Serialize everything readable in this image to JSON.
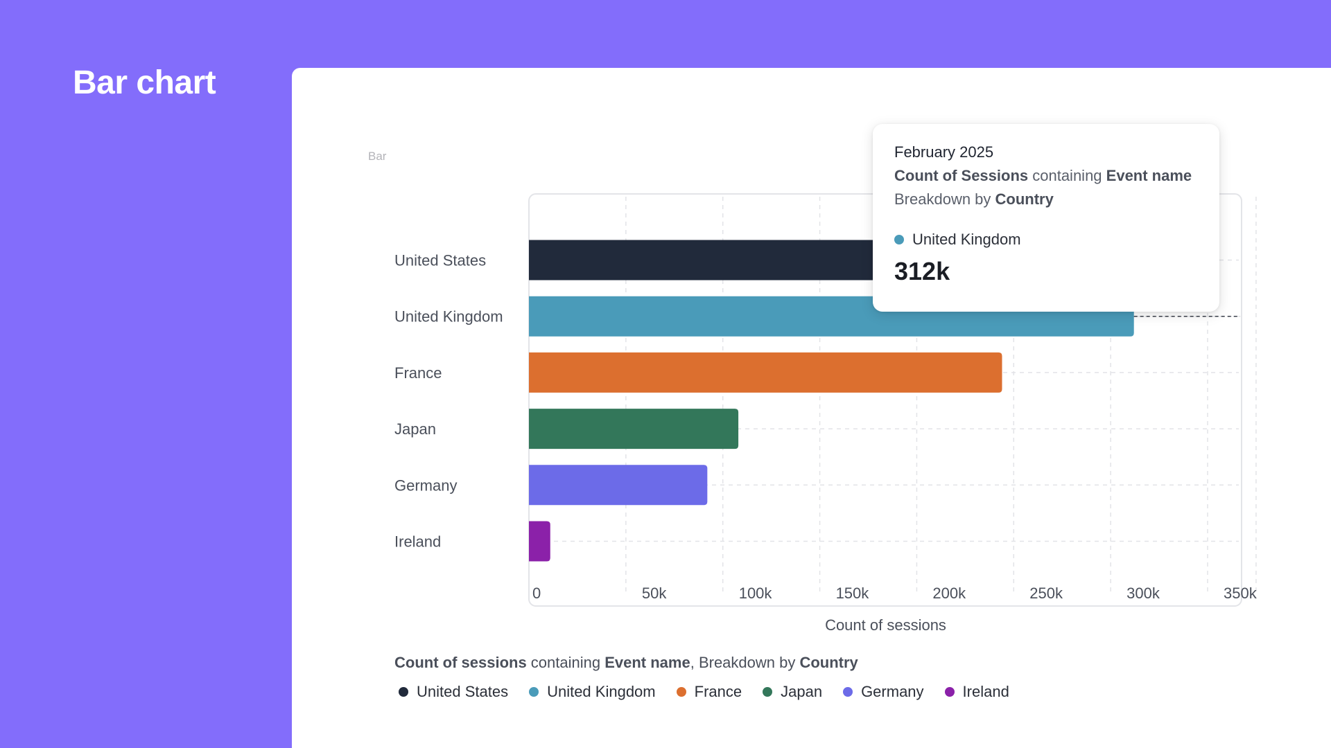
{
  "page": {
    "title": "Bar chart"
  },
  "panel": {
    "label": "Bar"
  },
  "legend": {
    "title_metric": "Count of sessions",
    "title_connector1": " containing ",
    "title_event": "Event name",
    "title_connector2": ", Breakdown by ",
    "title_breakdown": "Country"
  },
  "tooltip": {
    "date": "February 2025",
    "metric": "Count of Sessions",
    "connector1": " containing ",
    "event": "Event name",
    "breakdown_prefix": "Breakdown by ",
    "breakdown": "Country",
    "series_name": "United Kingdom",
    "series_color": "#4a9bb9",
    "value": "312k"
  },
  "chart_data": {
    "type": "bar",
    "orientation": "horizontal",
    "categories": [
      "United States",
      "United Kingdom",
      "France",
      "Japan",
      "Germany",
      "Ireland"
    ],
    "values": [
      350000,
      312000,
      244000,
      108000,
      92000,
      11000
    ],
    "colors": [
      "#212a3b",
      "#4a9bb9",
      "#dc6f2f",
      "#33775a",
      "#6c6be8",
      "#8b21a9"
    ],
    "xlabel": "Count of sessions",
    "ylabel": "",
    "xlim": [
      0,
      375000
    ],
    "x_ticks": [
      0,
      50000,
      100000,
      150000,
      200000,
      250000,
      300000,
      350000
    ],
    "x_tick_labels": [
      "0",
      "50k",
      "100k",
      "150k",
      "200k",
      "250k",
      "300k",
      "350k"
    ],
    "grid": true,
    "highlight": "United Kingdom",
    "legend_placement": "bottom"
  }
}
